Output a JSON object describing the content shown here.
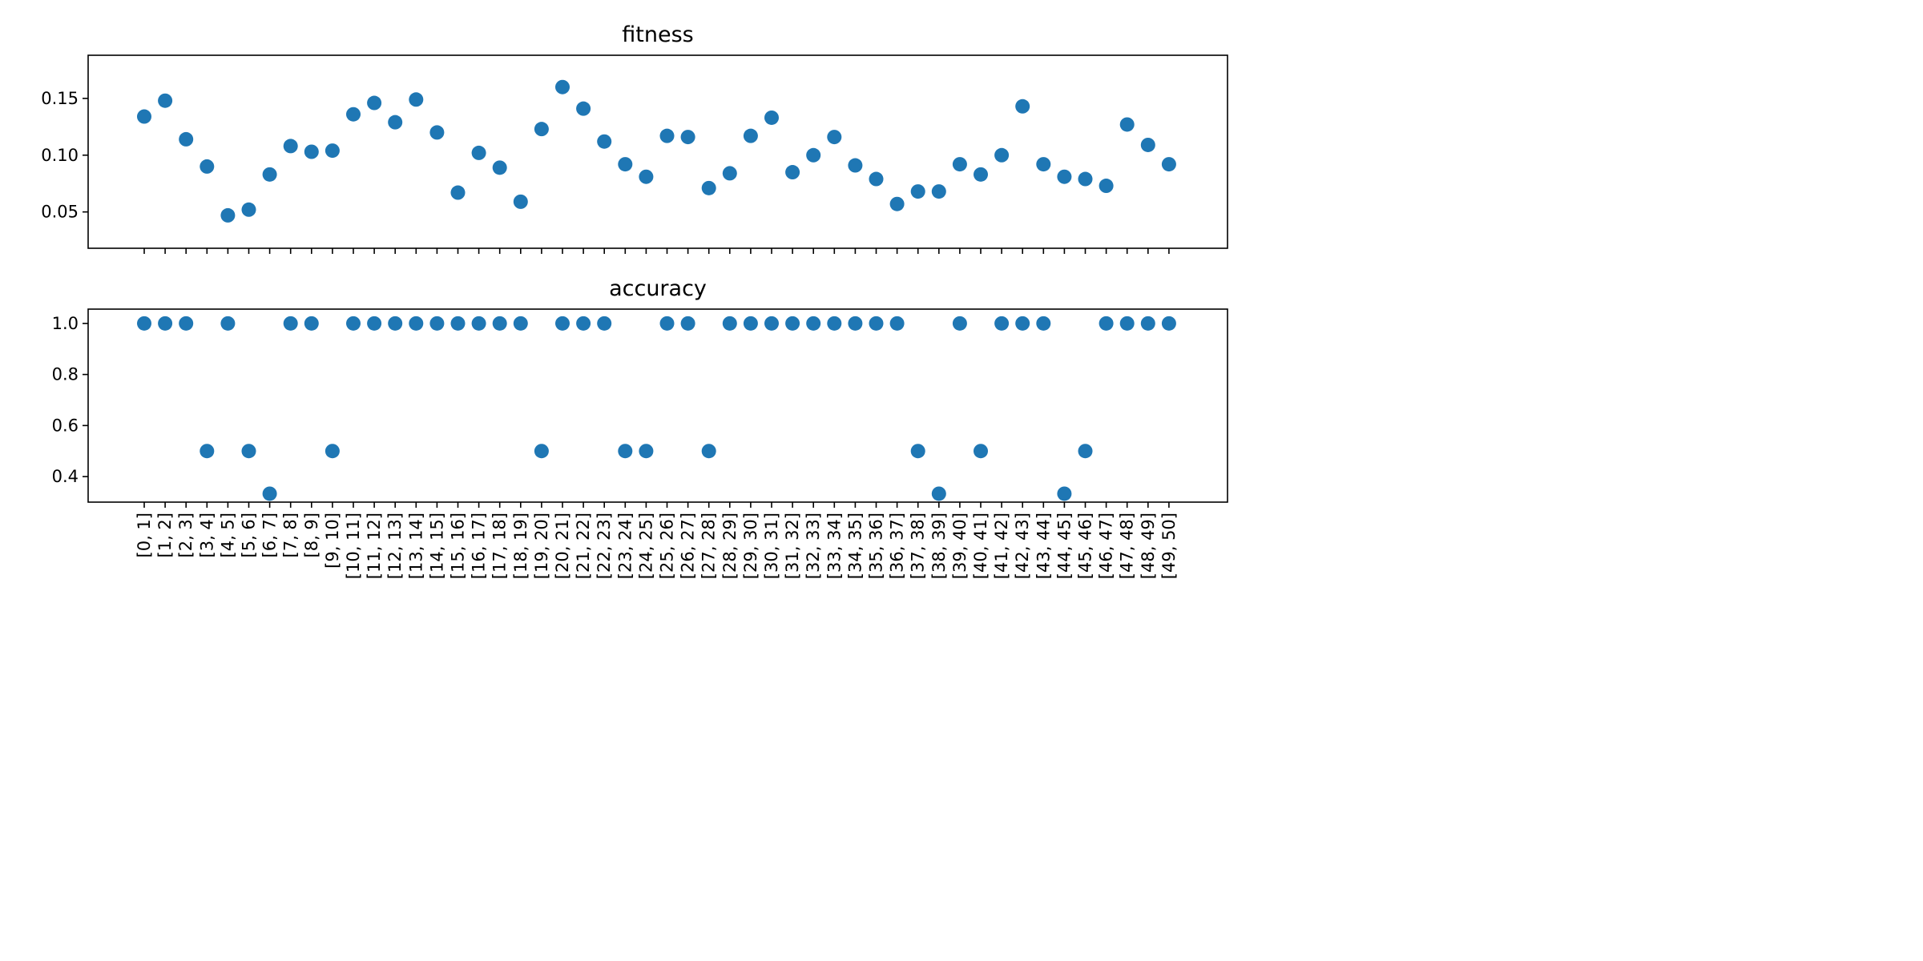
{
  "chart_data": [
    {
      "type": "scatter",
      "title": "fitness",
      "xlabel": "",
      "ylabel": "",
      "categories": [
        "[0, 1]",
        "[1, 2]",
        "[2, 3]",
        "[3, 4]",
        "[4, 5]",
        "[5, 6]",
        "[6, 7]",
        "[7, 8]",
        "[8, 9]",
        "[9, 10]",
        "[10, 11]",
        "[11, 12]",
        "[12, 13]",
        "[13, 14]",
        "[14, 15]",
        "[15, 16]",
        "[16, 17]",
        "[17, 18]",
        "[18, 19]",
        "[19, 20]",
        "[20, 21]",
        "[21, 22]",
        "[22, 23]",
        "[23, 24]",
        "[24, 25]",
        "[25, 26]",
        "[26, 27]",
        "[27, 28]",
        "[28, 29]",
        "[29, 30]",
        "[30, 31]",
        "[31, 32]",
        "[32, 33]",
        "[33, 34]",
        "[34, 35]",
        "[35, 36]",
        "[36, 37]",
        "[37, 38]",
        "[38, 39]",
        "[39, 40]",
        "[40, 41]",
        "[41, 42]",
        "[42, 43]",
        "[43, 44]",
        "[44, 45]",
        "[45, 46]",
        "[46, 47]",
        "[47, 48]",
        "[48, 49]",
        "[49, 50]"
      ],
      "values": [
        0.134,
        0.148,
        0.114,
        0.09,
        0.047,
        0.052,
        0.083,
        0.108,
        0.103,
        0.104,
        0.136,
        0.146,
        0.129,
        0.149,
        0.12,
        0.067,
        0.102,
        0.089,
        0.059,
        0.123,
        0.16,
        0.141,
        0.112,
        0.092,
        0.081,
        0.117,
        0.116,
        0.071,
        0.084,
        0.117,
        0.133,
        0.085,
        0.1,
        0.116,
        0.091,
        0.079,
        0.057,
        0.068,
        0.068,
        0.092,
        0.083,
        0.1,
        0.143,
        0.092,
        0.081,
        0.079,
        0.073,
        0.127,
        0.109,
        0.092
      ],
      "ylim": [
        0.018,
        0.188
      ],
      "yticks": [
        0.05,
        0.1,
        0.15
      ],
      "ytick_labels": [
        "0.05",
        "0.10",
        "0.15"
      ],
      "show_xtick_labels": false,
      "grid": false,
      "color": "#1f77b4"
    },
    {
      "type": "scatter",
      "title": "accuracy",
      "xlabel": "",
      "ylabel": "",
      "categories": [
        "[0, 1]",
        "[1, 2]",
        "[2, 3]",
        "[3, 4]",
        "[4, 5]",
        "[5, 6]",
        "[6, 7]",
        "[7, 8]",
        "[8, 9]",
        "[9, 10]",
        "[10, 11]",
        "[11, 12]",
        "[12, 13]",
        "[13, 14]",
        "[14, 15]",
        "[15, 16]",
        "[16, 17]",
        "[17, 18]",
        "[18, 19]",
        "[19, 20]",
        "[20, 21]",
        "[21, 22]",
        "[22, 23]",
        "[23, 24]",
        "[24, 25]",
        "[25, 26]",
        "[26, 27]",
        "[27, 28]",
        "[28, 29]",
        "[29, 30]",
        "[30, 31]",
        "[31, 32]",
        "[32, 33]",
        "[33, 34]",
        "[34, 35]",
        "[35, 36]",
        "[36, 37]",
        "[37, 38]",
        "[38, 39]",
        "[39, 40]",
        "[40, 41]",
        "[41, 42]",
        "[42, 43]",
        "[43, 44]",
        "[44, 45]",
        "[45, 46]",
        "[46, 47]",
        "[47, 48]",
        "[48, 49]",
        "[49, 50]"
      ],
      "values": [
        1.0,
        1.0,
        1.0,
        0.5,
        1.0,
        0.5,
        0.333,
        1.0,
        1.0,
        0.5,
        1.0,
        1.0,
        1.0,
        1.0,
        1.0,
        1.0,
        1.0,
        1.0,
        1.0,
        0.5,
        1.0,
        1.0,
        1.0,
        0.5,
        0.5,
        1.0,
        1.0,
        0.5,
        1.0,
        1.0,
        1.0,
        1.0,
        1.0,
        1.0,
        1.0,
        1.0,
        1.0,
        0.5,
        0.333,
        1.0,
        0.5,
        1.0,
        1.0,
        1.0,
        0.333,
        0.5,
        1.0,
        1.0,
        1.0,
        1.0
      ],
      "ylim": [
        0.3,
        1.056
      ],
      "yticks": [
        0.4,
        0.6,
        0.8,
        1.0
      ],
      "ytick_labels": [
        "0.4",
        "0.6",
        "0.8",
        "1.0"
      ],
      "show_xtick_labels": true,
      "grid": false,
      "color": "#1f77b4"
    }
  ]
}
